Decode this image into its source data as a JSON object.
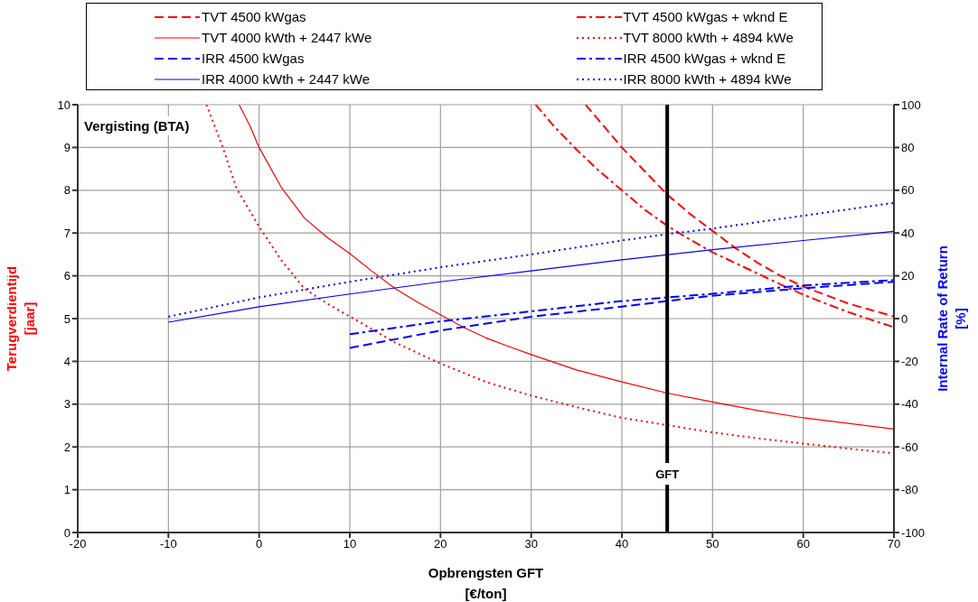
{
  "chart_data": {
    "type": "line",
    "xlabel": "Opbrengsten GFT\n[€/ton]",
    "ylabel": "Terugverdientijd\n[jaar]",
    "y2label": "Internal Rate of Return\n[%]",
    "xlim": [
      -20,
      70
    ],
    "xticks": [
      -20,
      -10,
      0,
      10,
      20,
      30,
      40,
      50,
      60,
      70
    ],
    "ylim": [
      0,
      10
    ],
    "yticks": [
      0,
      1,
      2,
      3,
      4,
      5,
      6,
      7,
      8,
      9,
      10
    ],
    "y2lim": [
      -100,
      100
    ],
    "y2ticks": [
      -100,
      -80,
      -60,
      -40,
      -20,
      0,
      20,
      40,
      60,
      80,
      100
    ],
    "grid": true,
    "legend": "top",
    "marker": "none",
    "annotations": [
      "Vergisting (BTA)"
    ],
    "ref_lines": [
      {
        "axis": "x",
        "value": 45,
        "label": "GFT",
        "color": "#000000"
      }
    ],
    "series": [
      {
        "name": "TVT 4500 kWgas",
        "color": "#ff0000",
        "line_style": "dashed",
        "x": [
          36,
          38,
          40,
          42.5,
          45,
          47.5,
          50,
          52.5,
          55,
          57.5,
          60,
          62.5,
          65,
          67.5,
          70
        ],
        "values": [
          10,
          9.5,
          9.0,
          8.45,
          7.9,
          7.45,
          7.05,
          6.65,
          6.3,
          6.0,
          5.75,
          5.55,
          5.35,
          5.2,
          5.05
        ]
      },
      {
        "name": "TVT 4500 kWgas + wknd E",
        "color": "#ff0000",
        "line_style": "dashdot",
        "x": [
          30.5,
          32.5,
          35,
          37.5,
          40,
          42.5,
          45,
          47.5,
          50,
          52.5,
          55,
          57.5,
          60,
          62.5,
          65,
          67.5,
          70
        ],
        "values": [
          10,
          9.5,
          8.95,
          8.45,
          8.0,
          7.55,
          7.17,
          6.85,
          6.55,
          6.3,
          6.05,
          5.8,
          5.56,
          5.35,
          5.15,
          4.97,
          4.8
        ]
      },
      {
        "name": "TVT 4000 kWth + 2447 kWe",
        "color": "#ff0000",
        "line_style": "solid",
        "x": [
          -2.2,
          -1,
          0,
          2.5,
          5,
          7.5,
          10,
          12.5,
          15,
          17.5,
          20,
          22.5,
          25,
          27.5,
          30,
          35,
          40,
          45,
          50,
          55,
          60,
          65,
          70
        ],
        "values": [
          10,
          9.5,
          9.0,
          8.05,
          7.35,
          6.9,
          6.52,
          6.1,
          5.7,
          5.38,
          5.09,
          4.8,
          4.55,
          4.35,
          4.16,
          3.8,
          3.52,
          3.26,
          3.05,
          2.85,
          2.68,
          2.55,
          2.42
        ]
      },
      {
        "name": "TVT 8000 kWth + 4894 kWe",
        "color": "#ff0000",
        "line_style": "dotted",
        "x": [
          -5.8,
          -4,
          -2.5,
          0,
          2.5,
          5,
          7.5,
          10,
          15,
          20,
          25,
          30,
          35,
          40,
          45,
          50,
          55,
          60,
          65,
          70
        ],
        "values": [
          10,
          9.0,
          8.05,
          7.15,
          6.35,
          5.7,
          5.35,
          5.05,
          4.44,
          3.95,
          3.52,
          3.2,
          2.93,
          2.68,
          2.51,
          2.34,
          2.2,
          2.08,
          1.96,
          1.85
        ]
      },
      {
        "name": "IRR 4500 kWgas",
        "color": "#0000ff",
        "line_style": "dashed",
        "axis": "y2",
        "x": [
          10,
          20,
          30,
          40,
          45,
          50,
          60,
          70
        ],
        "values": [
          -13.7,
          -5.6,
          0.9,
          5.6,
          8.2,
          10.7,
          14.2,
          17.2
        ]
      },
      {
        "name": "IRR 4500 kWgas + wknd E",
        "color": "#0000ff",
        "line_style": "dashdot",
        "axis": "y2",
        "x": [
          10,
          20,
          30,
          40,
          45,
          50,
          60,
          70
        ],
        "values": [
          -7.3,
          -1.3,
          3.4,
          8.2,
          9.9,
          11.6,
          15.5,
          18.0
        ]
      },
      {
        "name": "IRR 4000 kWth + 2447 kWe",
        "color": "#0000ff",
        "line_style": "solid",
        "axis": "y2",
        "x": [
          -10,
          0,
          10,
          20,
          30,
          40,
          50,
          60,
          70
        ],
        "values": [
          -1.7,
          5.5,
          11.5,
          17.2,
          22.3,
          27.5,
          32.2,
          36.5,
          40.8
        ]
      },
      {
        "name": "IRR 8000 kWth + 4894 kWe",
        "color": "#0000ff",
        "line_style": "dotted",
        "axis": "y2",
        "x": [
          -10,
          0,
          10,
          20,
          30,
          40,
          45,
          50,
          60,
          70
        ],
        "values": [
          0.9,
          9.9,
          17.2,
          24.0,
          30.0,
          36.5,
          39.5,
          42.1,
          48.1,
          54.1
        ]
      }
    ]
  }
}
